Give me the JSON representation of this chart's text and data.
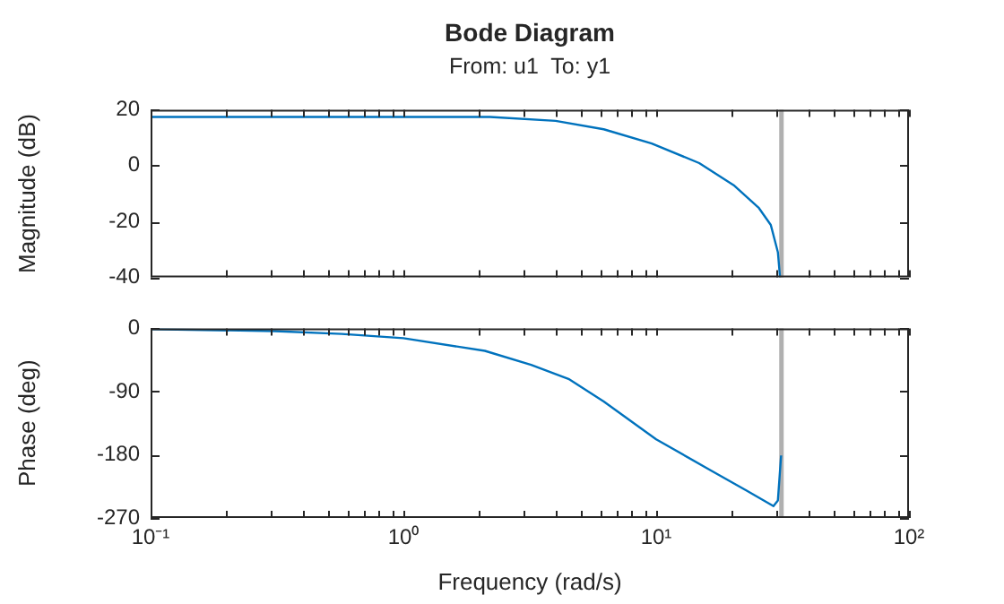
{
  "chart_data": [
    {
      "type": "line",
      "title": "Bode Diagram",
      "subtitle": "From: u1  To: y1",
      "ylabel": "Magnitude (dB)",
      "log": "x",
      "marker": "none",
      "tick_labels": "y",
      "series": [
        {
          "color": "#0072bd",
          "x": [
            0.1,
            0.3,
            1,
            2.2,
            4,
            6.2,
            9.6,
            14.8,
            20.4,
            25.5,
            28.4,
            30.3,
            30.9
          ],
          "values": [
            17.4,
            17.4,
            17.4,
            17.4,
            16,
            13,
            7.9,
            0.9,
            -7.2,
            -15.2,
            -21.2,
            -31,
            -40
          ]
        }
      ],
      "xlim": [
        0.1,
        100
      ],
      "xticks": [
        {
          "value": 0.1,
          "label": null
        },
        {
          "value": 0.2,
          "label": null
        },
        {
          "value": 0.3,
          "label": null
        },
        {
          "value": 0.4,
          "label": null
        },
        {
          "value": 0.5,
          "label": null
        },
        {
          "value": 0.6,
          "label": null
        },
        {
          "value": 0.7,
          "label": null
        },
        {
          "value": 0.8,
          "label": null
        },
        {
          "value": 0.9,
          "label": null
        },
        {
          "value": 1,
          "label": null
        },
        {
          "value": 2,
          "label": null
        },
        {
          "value": 3,
          "label": null
        },
        {
          "value": 4,
          "label": null
        },
        {
          "value": 5,
          "label": null
        },
        {
          "value": 6,
          "label": null
        },
        {
          "value": 7,
          "label": null
        },
        {
          "value": 8,
          "label": null
        },
        {
          "value": 9,
          "label": null
        },
        {
          "value": 10,
          "label": null
        },
        {
          "value": 20,
          "label": null
        },
        {
          "value": 30,
          "label": null
        },
        {
          "value": 40,
          "label": null
        },
        {
          "value": 50,
          "label": null
        },
        {
          "value": 60,
          "label": null
        },
        {
          "value": 70,
          "label": null
        },
        {
          "value": 80,
          "label": null
        },
        {
          "value": 90,
          "label": null
        },
        {
          "value": 100,
          "label": null
        }
      ],
      "ylim": [
        -40,
        20
      ],
      "yticks": [
        -40,
        -20,
        0,
        20
      ],
      "ref_lines": [
        {
          "axis": "x",
          "value": 31.3,
          "color": "#b0b0b0"
        }
      ]
    },
    {
      "type": "line",
      "xlabel": "Frequency (rad/s)",
      "ylabel": "Phase (deg)",
      "log": "x",
      "marker": "none",
      "series": [
        {
          "color": "#0072bd",
          "x": [
            0.1,
            0.31,
            0.57,
            1,
            2.1,
            3.2,
            4.5,
            6.2,
            10,
            16.4,
            22.8,
            29.1,
            30.3,
            31.2
          ],
          "values": [
            -1,
            -4,
            -8,
            -14,
            -32,
            -52,
            -72,
            -104,
            -158,
            -202,
            -231,
            -253,
            -245,
            -181
          ]
        }
      ],
      "xlim": [
        0.1,
        100
      ],
      "xticks": [
        {
          "value": 0.1,
          "label": "10⁻¹"
        },
        {
          "value": 0.2,
          "label": null
        },
        {
          "value": 0.3,
          "label": null
        },
        {
          "value": 0.4,
          "label": null
        },
        {
          "value": 0.5,
          "label": null
        },
        {
          "value": 0.6,
          "label": null
        },
        {
          "value": 0.7,
          "label": null
        },
        {
          "value": 0.8,
          "label": null
        },
        {
          "value": 0.9,
          "label": null
        },
        {
          "value": 1,
          "label": "10⁰"
        },
        {
          "value": 2,
          "label": null
        },
        {
          "value": 3,
          "label": null
        },
        {
          "value": 4,
          "label": null
        },
        {
          "value": 5,
          "label": null
        },
        {
          "value": 6,
          "label": null
        },
        {
          "value": 7,
          "label": null
        },
        {
          "value": 8,
          "label": null
        },
        {
          "value": 9,
          "label": null
        },
        {
          "value": 10,
          "label": "10¹"
        },
        {
          "value": 20,
          "label": null
        },
        {
          "value": 30,
          "label": null
        },
        {
          "value": 40,
          "label": null
        },
        {
          "value": 50,
          "label": null
        },
        {
          "value": 60,
          "label": null
        },
        {
          "value": 70,
          "label": null
        },
        {
          "value": 80,
          "label": null
        },
        {
          "value": 90,
          "label": null
        },
        {
          "value": 100,
          "label": "10²"
        }
      ],
      "ylim": [
        -270,
        0
      ],
      "yticks": [
        -270,
        -180,
        -90,
        0
      ],
      "ref_lines": [
        {
          "axis": "x",
          "value": 31.3,
          "color": "#b0b0b0"
        }
      ]
    }
  ]
}
